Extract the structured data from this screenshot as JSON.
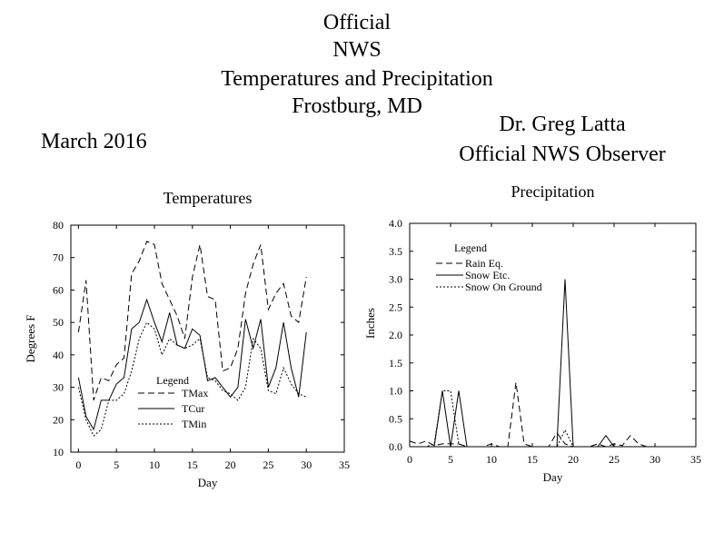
{
  "header": {
    "line1": "Official",
    "line2": "NWS",
    "line3": "Temperatures and Precipitation",
    "line4": "Frostburg, MD",
    "month": "March 2016",
    "observer_name": "Dr. Greg Latta",
    "observer_title": "Official NWS Observer"
  },
  "chart_data": [
    {
      "type": "line",
      "title": "Temperatures",
      "xlabel": "Day",
      "ylabel": "Degrees F",
      "xlim": [
        -1,
        35
      ],
      "ylim": [
        10,
        80
      ],
      "xticks": [
        0,
        5,
        10,
        15,
        20,
        25,
        30,
        35
      ],
      "yticks": [
        10,
        20,
        30,
        40,
        50,
        60,
        70,
        80
      ],
      "grid": false,
      "legend_title": "Legend",
      "legend_position": "bottom-center",
      "x": [
        0,
        1,
        2,
        3,
        4,
        5,
        6,
        7,
        8,
        9,
        10,
        11,
        12,
        13,
        14,
        15,
        16,
        17,
        18,
        19,
        20,
        21,
        22,
        23,
        24,
        25,
        26,
        27,
        28,
        29,
        30
      ],
      "series": [
        {
          "name": "TMax",
          "dash": "dashed",
          "values": [
            47,
            63,
            26,
            33,
            32,
            37,
            39,
            65,
            69,
            75,
            74,
            62,
            57,
            52,
            45,
            64,
            74,
            58,
            57,
            35,
            36,
            42,
            59,
            68,
            74,
            54,
            59,
            62,
            52,
            50,
            64
          ]
        },
        {
          "name": "TCur",
          "dash": "solid",
          "values": [
            33,
            21,
            17,
            26,
            26,
            31,
            33,
            48,
            50,
            57,
            50,
            44,
            53,
            43,
            42,
            48,
            46,
            32,
            33,
            30,
            27,
            30,
            51,
            42,
            51,
            30,
            36,
            50,
            36,
            27,
            47
          ]
        },
        {
          "name": "TMin",
          "dash": "dotted",
          "values": [
            30,
            20,
            15,
            17,
            26,
            26,
            28,
            35,
            45,
            50,
            48,
            40,
            45,
            43,
            42,
            43,
            45,
            33,
            32,
            29,
            28,
            26,
            30,
            45,
            42,
            29,
            28,
            36,
            31,
            28,
            27
          ]
        }
      ]
    },
    {
      "type": "line",
      "title": "Precipitation",
      "xlabel": "Day",
      "ylabel": "Inches",
      "xlim": [
        0,
        35
      ],
      "ylim": [
        0,
        4
      ],
      "xticks": [
        0,
        5,
        10,
        15,
        20,
        25,
        30,
        35
      ],
      "yticks": [
        "0.0",
        "0.5",
        "1.0",
        "1.5",
        "2.0",
        "2.5",
        "3.0",
        "3.5",
        "4.0"
      ],
      "grid": false,
      "legend_title": "Legend",
      "legend_position": "top-left",
      "x": [
        0,
        1,
        2,
        3,
        4,
        5,
        6,
        7,
        8,
        9,
        10,
        11,
        12,
        13,
        14,
        15,
        16,
        17,
        18,
        19,
        20,
        21,
        22,
        23,
        24,
        25,
        26,
        27,
        28,
        29,
        30
      ],
      "series": [
        {
          "name": "Rain Eq.",
          "dash": "dashed",
          "values": [
            0.1,
            0.05,
            0.1,
            0.02,
            0.05,
            0.05,
            0.05,
            0,
            0,
            0,
            0.05,
            0,
            0,
            1.15,
            0.05,
            0,
            0,
            0,
            0.25,
            0.05,
            0,
            0,
            0,
            0.05,
            0,
            0.05,
            0.02,
            0.2,
            0.05,
            0,
            0
          ]
        },
        {
          "name": "Snow Etc.",
          "dash": "solid",
          "values": [
            0,
            0,
            0,
            0,
            1.0,
            0,
            1.0,
            0,
            0,
            0,
            0,
            0,
            0,
            0,
            0,
            0,
            0,
            0,
            0,
            3.0,
            0,
            0,
            0,
            0,
            0.2,
            0,
            0,
            0,
            0,
            0,
            0
          ]
        },
        {
          "name": "Snow On Ground",
          "dash": "dotted",
          "values": [
            0,
            0,
            0,
            0.05,
            1.0,
            1.0,
            0.05,
            0,
            0,
            0,
            0,
            0,
            0,
            0,
            0,
            0,
            0,
            0,
            0,
            0.3,
            0,
            0,
            0,
            0,
            0,
            0,
            0,
            0,
            0,
            0,
            0
          ]
        }
      ]
    }
  ]
}
